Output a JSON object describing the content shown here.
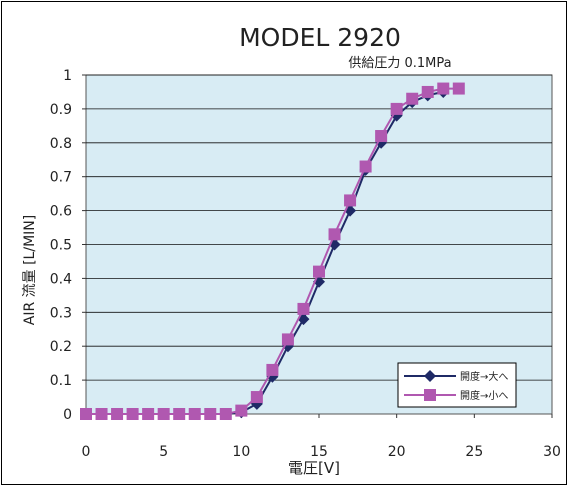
{
  "chart_data": {
    "type": "line",
    "title": "MODEL 2920",
    "subtitle": "供給圧力 0.1MPa",
    "xlabel": "電圧[V]",
    "ylabel": "AIR 流量 [L/MIN]",
    "xlim": [
      0,
      30
    ],
    "ylim": [
      0,
      1
    ],
    "xticks": [
      "0",
      "5",
      "10",
      "15",
      "20",
      "25",
      "30"
    ],
    "yticks": [
      "0",
      "0.1",
      "0.2",
      "0.3",
      "0.4",
      "0.5",
      "0.6",
      "0.7",
      "0.8",
      "0.9",
      "1"
    ],
    "grid": "horizontal",
    "legend_position": "bottom-right",
    "plot_background": "#d8ecf4",
    "series": [
      {
        "name": "開度→大へ",
        "marker": "diamond",
        "color": "#1f2a66",
        "x": [
          0,
          1,
          2,
          3,
          4,
          5,
          6,
          7,
          8,
          9,
          10,
          11,
          12,
          13,
          14,
          15,
          16,
          17,
          18,
          19,
          20,
          21,
          22,
          23
        ],
        "values": [
          0,
          0,
          0,
          0,
          0,
          0,
          0,
          0,
          0,
          0,
          0.005,
          0.03,
          0.11,
          0.2,
          0.28,
          0.39,
          0.5,
          0.6,
          0.72,
          0.8,
          0.88,
          0.92,
          0.94,
          0.95
        ]
      },
      {
        "name": "開度→小へ",
        "marker": "square",
        "color": "#b058b0",
        "x": [
          0,
          1,
          2,
          3,
          4,
          5,
          6,
          7,
          8,
          9,
          10,
          11,
          12,
          13,
          14,
          15,
          16,
          17,
          18,
          19,
          20,
          21,
          22,
          23,
          24
        ],
        "values": [
          0,
          0,
          0,
          0,
          0,
          0,
          0,
          0,
          0,
          0,
          0.01,
          0.05,
          0.13,
          0.22,
          0.31,
          0.42,
          0.53,
          0.63,
          0.73,
          0.82,
          0.9,
          0.93,
          0.95,
          0.96,
          0.96
        ]
      }
    ]
  }
}
